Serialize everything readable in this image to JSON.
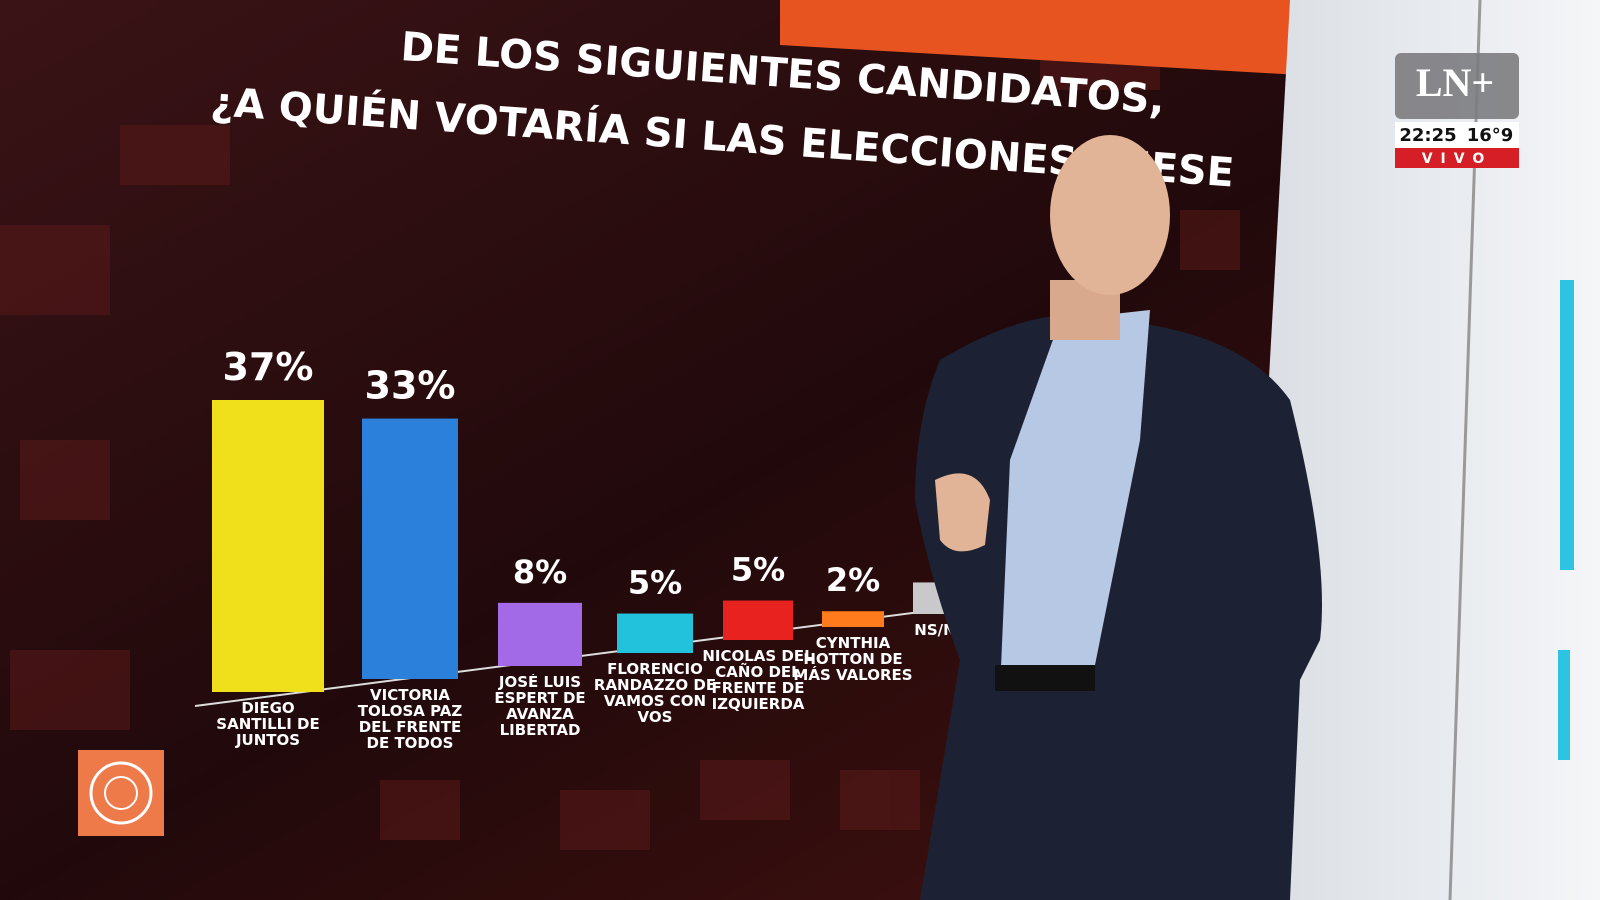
{
  "chart_data": {
    "type": "bar",
    "title": [
      "DE LOS SIGUIENTES CANDIDATOS,",
      "¿A QUIÉN VOTARÍA SI LAS ELECCIONES FUESE"
    ],
    "categories": [
      "DIEGO SANTILLI DE JUNTOS",
      "VICTORIA TOLOSA PAZ DEL FRENTE DE TODOS",
      "JOSÉ LUIS ESPERT DE AVANZA LIBERTAD",
      "FLORENCIO RANDAZZO DE VAMOS CON VOS",
      "NICOLAS DEL CAÑO DEL FRENTE DE IZQUIERDA",
      "CYNTHIA HOTTON DE MÁS VALORES",
      "NS/N"
    ],
    "values": [
      37,
      33,
      8,
      5,
      5,
      2,
      4
    ],
    "value_labels": [
      "37%",
      "33%",
      "8%",
      "5%",
      "5%",
      "2%",
      null
    ],
    "colors": [
      "#f0e01c",
      "#2b80dc",
      "#a36ae8",
      "#22c2dc",
      "#e8231f",
      "#ff7b1c",
      "#c9c9cc"
    ]
  },
  "broadcast": {
    "logo": "LN+",
    "time": "22:25",
    "temperature": "16°9",
    "live": "VIVO"
  }
}
